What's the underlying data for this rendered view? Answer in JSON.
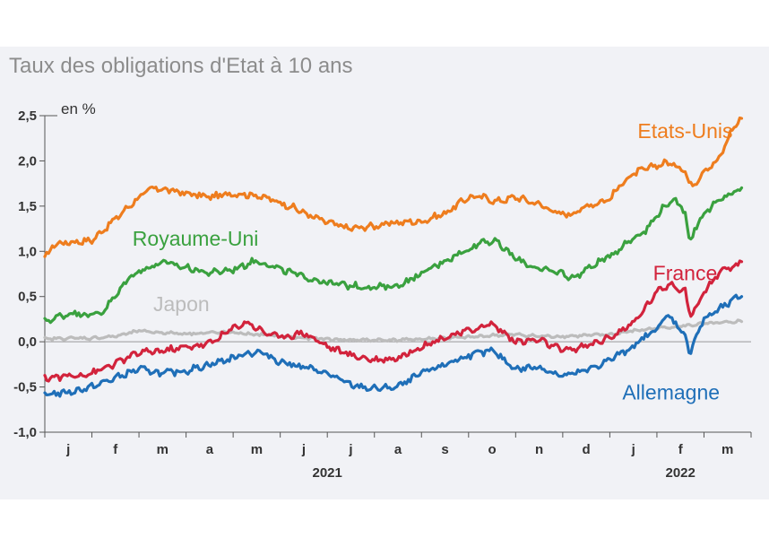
{
  "title": "Taux des obligations d'Etat à 10 ans",
  "colors": {
    "background": "#f1f2f6",
    "axis": "#555555",
    "zero_line": "#999999"
  },
  "chart_data": {
    "type": "line",
    "unit_label": "en %",
    "ylim": [
      -1.0,
      2.5
    ],
    "y_ticks": [
      {
        "value": 2.5,
        "label": "2,5"
      },
      {
        "value": 2.0,
        "label": "2,0"
      },
      {
        "value": 1.5,
        "label": "1,5"
      },
      {
        "value": 1.0,
        "label": "1,0"
      },
      {
        "value": 0.5,
        "label": "0,5"
      },
      {
        "value": 0.0,
        "label": "0,0"
      },
      {
        "value": -0.5,
        "label": "-0,5"
      },
      {
        "value": -1.0,
        "label": "-1,0"
      }
    ],
    "xlim": [
      0,
      15
    ],
    "month_labels": [
      "j",
      "f",
      "m",
      "a",
      "m",
      "j",
      "j",
      "a",
      "s",
      "o",
      "n",
      "d",
      "j",
      "f",
      "m"
    ],
    "year_labels": [
      {
        "label": "2021",
        "center": 6.0
      },
      {
        "label": "2022",
        "center": 13.5
      }
    ],
    "grid": false,
    "series": [
      {
        "name": "Etats-Unis",
        "color": "#ee7d1e",
        "x": [
          0,
          0.2,
          0.5,
          1.0,
          1.5,
          2.0,
          2.3,
          2.6,
          3.0,
          3.5,
          4.0,
          4.5,
          5.0,
          5.3,
          5.6,
          6.0,
          6.5,
          7.0,
          7.5,
          8.0,
          8.5,
          9.0,
          9.3,
          9.6,
          10.0,
          10.5,
          11.0,
          11.3,
          11.5,
          12.0,
          12.3,
          12.6,
          13.0,
          13.2,
          13.4,
          13.6,
          13.7,
          13.8,
          14.0,
          14.3,
          14.6,
          14.8
        ],
        "values": [
          0.92,
          1.08,
          1.1,
          1.12,
          1.36,
          1.6,
          1.7,
          1.68,
          1.64,
          1.6,
          1.64,
          1.62,
          1.54,
          1.48,
          1.4,
          1.32,
          1.25,
          1.28,
          1.32,
          1.33,
          1.42,
          1.6,
          1.6,
          1.55,
          1.6,
          1.52,
          1.4,
          1.44,
          1.5,
          1.58,
          1.78,
          1.88,
          1.95,
          1.98,
          1.95,
          1.9,
          1.72,
          1.75,
          1.9,
          2.0,
          2.35,
          2.48
        ]
      },
      {
        "name": "Royaume-Uni",
        "color": "#3aa13f",
        "x": [
          0,
          0.3,
          0.6,
          1.0,
          1.2,
          1.5,
          1.8,
          2.0,
          2.5,
          3.0,
          3.5,
          4.0,
          4.5,
          5.0,
          5.5,
          6.0,
          6.5,
          7.0,
          7.5,
          8.0,
          8.5,
          9.0,
          9.3,
          9.6,
          10.0,
          10.5,
          11.0,
          11.2,
          11.5,
          12.0,
          12.5,
          12.8,
          13.0,
          13.2,
          13.4,
          13.6,
          13.7,
          13.8,
          14.0,
          14.3,
          14.6,
          14.8
        ],
        "values": [
          0.22,
          0.28,
          0.32,
          0.3,
          0.32,
          0.5,
          0.72,
          0.78,
          0.88,
          0.82,
          0.76,
          0.8,
          0.9,
          0.8,
          0.72,
          0.65,
          0.62,
          0.6,
          0.62,
          0.75,
          0.9,
          1.02,
          1.12,
          1.1,
          0.92,
          0.8,
          0.76,
          0.7,
          0.8,
          0.95,
          1.15,
          1.25,
          1.4,
          1.52,
          1.55,
          1.45,
          1.08,
          1.25,
          1.42,
          1.55,
          1.65,
          1.68
        ]
      },
      {
        "name": "Japon",
        "color": "#bcbcbc",
        "x": [
          0,
          0.5,
          1.0,
          1.5,
          2.0,
          2.5,
          3.0,
          3.5,
          4.0,
          4.5,
          5.0,
          5.5,
          6.0,
          6.5,
          7.0,
          7.5,
          8.0,
          8.5,
          9.0,
          9.5,
          10.0,
          10.5,
          11.0,
          11.5,
          12.0,
          12.5,
          13.0,
          13.5,
          14.0,
          14.5,
          14.8
        ],
        "values": [
          0.03,
          0.04,
          0.04,
          0.06,
          0.12,
          0.1,
          0.09,
          0.1,
          0.1,
          0.08,
          0.06,
          0.04,
          0.03,
          0.02,
          0.02,
          0.02,
          0.03,
          0.04,
          0.05,
          0.07,
          0.08,
          0.06,
          0.06,
          0.07,
          0.08,
          0.12,
          0.15,
          0.17,
          0.2,
          0.21,
          0.23
        ]
      },
      {
        "name": "France",
        "color": "#d2233c",
        "x": [
          0,
          0.5,
          1.0,
          1.5,
          2.0,
          2.5,
          3.0,
          3.5,
          4.0,
          4.3,
          4.6,
          5.0,
          5.5,
          6.0,
          6.5,
          7.0,
          7.5,
          8.0,
          8.5,
          9.0,
          9.5,
          10.0,
          10.5,
          11.0,
          11.5,
          12.0,
          12.5,
          13.0,
          13.3,
          13.6,
          13.7,
          13.8,
          14.0,
          14.3,
          14.6,
          14.8
        ],
        "values": [
          -0.4,
          -0.38,
          -0.35,
          -0.24,
          -0.12,
          -0.1,
          -0.06,
          -0.02,
          0.15,
          0.22,
          0.12,
          0.05,
          0.1,
          -0.05,
          -0.15,
          -0.2,
          -0.18,
          -0.05,
          0.05,
          0.12,
          0.2,
          0.0,
          0.02,
          -0.1,
          -0.05,
          0.05,
          0.2,
          0.55,
          0.65,
          0.55,
          0.3,
          0.35,
          0.55,
          0.75,
          0.82,
          0.88
        ]
      },
      {
        "name": "Allemagne",
        "color": "#1f6fb8",
        "x": [
          0,
          0.5,
          1.0,
          1.5,
          2.0,
          2.5,
          3.0,
          3.5,
          4.0,
          4.3,
          4.6,
          5.0,
          5.5,
          6.0,
          6.5,
          7.0,
          7.5,
          8.0,
          8.5,
          9.0,
          9.5,
          10.0,
          10.5,
          11.0,
          11.5,
          12.0,
          12.5,
          13.0,
          13.2,
          13.4,
          13.6,
          13.7,
          13.8,
          14.0,
          14.3,
          14.6,
          14.8
        ],
        "values": [
          -0.58,
          -0.56,
          -0.5,
          -0.4,
          -0.3,
          -0.35,
          -0.32,
          -0.25,
          -0.18,
          -0.12,
          -0.12,
          -0.22,
          -0.28,
          -0.35,
          -0.48,
          -0.52,
          -0.5,
          -0.35,
          -0.25,
          -0.15,
          -0.1,
          -0.3,
          -0.28,
          -0.38,
          -0.32,
          -0.2,
          -0.05,
          0.15,
          0.28,
          0.22,
          0.05,
          -0.12,
          0.02,
          0.25,
          0.35,
          0.45,
          0.52
        ]
      }
    ],
    "series_labels": [
      {
        "series": "Etats-Unis",
        "at_x": 13.6,
        "at_y": 2.33
      },
      {
        "series": "Royaume-Uni",
        "at_x": 3.2,
        "at_y": 1.14
      },
      {
        "series": "Japon",
        "at_x": 2.9,
        "at_y": 0.42
      },
      {
        "series": "France",
        "at_x": 13.6,
        "at_y": 0.76
      },
      {
        "series": "Allemagne",
        "at_x": 13.3,
        "at_y": -0.56
      }
    ]
  }
}
